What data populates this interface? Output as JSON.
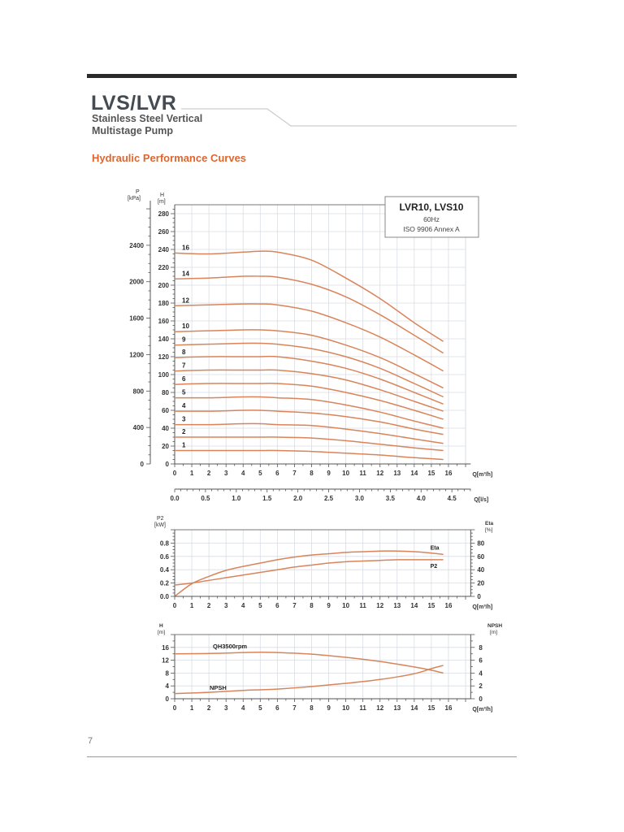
{
  "header": {
    "title": "LVS/LVR",
    "subtitle_line1": "Stainless Steel Vertical",
    "subtitle_line2": "Multistage Pump",
    "section_title": "Hydraulic Performance Curves"
  },
  "footer": {
    "page_number": "7"
  },
  "colors": {
    "accent": "#e0662e",
    "curve": "#d9845a",
    "curve_dark": "#c8562a",
    "grid": "#d8dde3",
    "title": "#444b52"
  },
  "legend_box": {
    "model": "LVR10, LVS10",
    "frequency": "60Hz",
    "standard": "ISO 9906 Annex A"
  },
  "axes": {
    "main_left_outer_label": "P",
    "main_left_outer_unit": "[kPa]",
    "main_left_inner_label": "H",
    "main_left_inner_unit": "[m]",
    "q_m3h_label": "Q[m³/h]",
    "q_ls_label": "Q[l/s]",
    "power_left_label": "P2",
    "power_left_unit": "[kW]",
    "power_right_label": "Eta",
    "power_right_unit": "[%]",
    "npsh_left_label": "H",
    "npsh_left_unit": "[m]",
    "npsh_right_label": "NPSH",
    "npsh_right_unit": "[m]"
  },
  "chart_data": [
    {
      "type": "line",
      "title": "LVR10, LVS10 — 60Hz — ISO 9906 Annex A",
      "xlabel": "Q[m³/h]",
      "ylabel": "H [m]",
      "ylabel_secondary": "P [kPa]",
      "xlim": [
        0,
        17
      ],
      "ylim": [
        0,
        290
      ],
      "x_ticks": [
        0,
        1,
        2,
        3,
        4,
        5,
        6,
        7,
        8,
        9,
        10,
        11,
        12,
        13,
        14,
        15,
        16
      ],
      "y_ticks": [
        0,
        20,
        40,
        60,
        80,
        100,
        120,
        140,
        160,
        180,
        200,
        220,
        240,
        260,
        280
      ],
      "y2_ticks": [
        0,
        400,
        800,
        1200,
        1600,
        2000,
        2400
      ],
      "secondary_x_axis": {
        "label": "Q[l/s]",
        "ticks": [
          0.0,
          0.5,
          1.0,
          1.5,
          2.0,
          2.5,
          3.0,
          3.5,
          4.0,
          4.5
        ]
      },
      "grid": true,
      "x": [
        0,
        2,
        4,
        5,
        6,
        8,
        10,
        12,
        14,
        15.7
      ],
      "series": [
        {
          "name": "16",
          "values": [
            236,
            235,
            237,
            238,
            237,
            228,
            208,
            185,
            158,
            137
          ]
        },
        {
          "name": "14",
          "values": [
            207,
            208,
            210,
            210,
            209,
            201,
            187,
            167,
            144,
            124
          ]
        },
        {
          "name": "12",
          "values": [
            177,
            178,
            179,
            179,
            178,
            171,
            158,
            142,
            122,
            104
          ]
        },
        {
          "name": "10",
          "values": [
            148,
            149,
            150,
            150,
            149,
            144,
            133,
            119,
            101,
            85
          ]
        },
        {
          "name": "9",
          "values": [
            133,
            134,
            135,
            135,
            134,
            129,
            120,
            107,
            90,
            75
          ]
        },
        {
          "name": "8",
          "values": [
            119,
            120,
            120,
            120,
            120,
            115,
            107,
            95,
            80,
            67
          ]
        },
        {
          "name": "7",
          "values": [
            104,
            105,
            105,
            105,
            105,
            101,
            94,
            83,
            70,
            59
          ]
        },
        {
          "name": "6",
          "values": [
            89,
            90,
            90,
            90,
            90,
            87,
            80,
            71,
            60,
            50
          ]
        },
        {
          "name": "5",
          "values": [
            74,
            74,
            75,
            75,
            74,
            72,
            66,
            58,
            48,
            40
          ]
        },
        {
          "name": "4",
          "values": [
            59,
            59,
            60,
            60,
            59,
            57,
            53,
            47,
            39,
            33
          ]
        },
        {
          "name": "3",
          "values": [
            44,
            44,
            45,
            45,
            44,
            43,
            39,
            34,
            28,
            23
          ]
        },
        {
          "name": "2",
          "values": [
            30,
            30,
            30,
            30,
            30,
            29,
            26,
            22,
            18,
            15
          ]
        },
        {
          "name": "1",
          "values": [
            15,
            15,
            15,
            15,
            15,
            14,
            12,
            10,
            7,
            5
          ]
        }
      ]
    },
    {
      "type": "line",
      "title": "Power and Efficiency",
      "xlabel": "Q[m³/h]",
      "ylabel": "P2 [kW]",
      "ylabel_secondary": "Eta [%]",
      "xlim": [
        0,
        17
      ],
      "ylim": [
        0,
        1.0
      ],
      "x_ticks": [
        0,
        1,
        2,
        3,
        4,
        5,
        6,
        7,
        8,
        9,
        10,
        11,
        12,
        13,
        14,
        15,
        16
      ],
      "y_ticks": [
        0.0,
        0.2,
        0.4,
        0.6,
        0.8
      ],
      "y2_ticks": [
        0,
        20,
        40,
        60,
        80
      ],
      "grid": true,
      "x": [
        0,
        1,
        2,
        3,
        4,
        5,
        6,
        7,
        8,
        9,
        10,
        11,
        12,
        13,
        14,
        15,
        15.7
      ],
      "series": [
        {
          "name": "Eta",
          "axis": "right",
          "values": [
            0,
            19,
            30,
            39,
            45,
            50,
            55,
            59,
            62,
            64,
            66,
            67,
            68,
            68,
            67,
            65,
            63
          ]
        },
        {
          "name": "P2",
          "axis": "left",
          "values": [
            0.17,
            0.2,
            0.24,
            0.28,
            0.32,
            0.36,
            0.4,
            0.44,
            0.47,
            0.5,
            0.52,
            0.53,
            0.54,
            0.55,
            0.55,
            0.55,
            0.55
          ]
        }
      ]
    },
    {
      "type": "line",
      "title": "Single stage head and NPSH",
      "xlabel": "Q[m³/h]",
      "ylabel": "H [m]",
      "ylabel_secondary": "NPSH [m]",
      "xlim": [
        0,
        17
      ],
      "ylim": [
        0,
        18
      ],
      "x_ticks": [
        0,
        1,
        2,
        3,
        4,
        5,
        6,
        7,
        8,
        9,
        10,
        11,
        12,
        13,
        14,
        15,
        16
      ],
      "y_ticks": [
        0,
        4,
        8,
        12,
        16
      ],
      "y2_ticks": [
        0,
        2,
        4,
        6,
        8
      ],
      "grid": true,
      "x": [
        0,
        2,
        4,
        5,
        6,
        8,
        10,
        12,
        14,
        15,
        15.7
      ],
      "series": [
        {
          "name": "QH3500rpm",
          "axis": "left",
          "values": [
            14.0,
            14.1,
            14.4,
            14.5,
            14.4,
            13.9,
            12.9,
            11.6,
            9.9,
            8.9,
            8.0
          ]
        },
        {
          "name": "NPSH",
          "axis": "right",
          "values": [
            0.8,
            1.0,
            1.3,
            1.4,
            1.5,
            1.9,
            2.4,
            3.0,
            3.9,
            4.7,
            5.2
          ]
        }
      ],
      "annotations": [
        "QH3500rpm",
        "NPSH"
      ]
    }
  ]
}
